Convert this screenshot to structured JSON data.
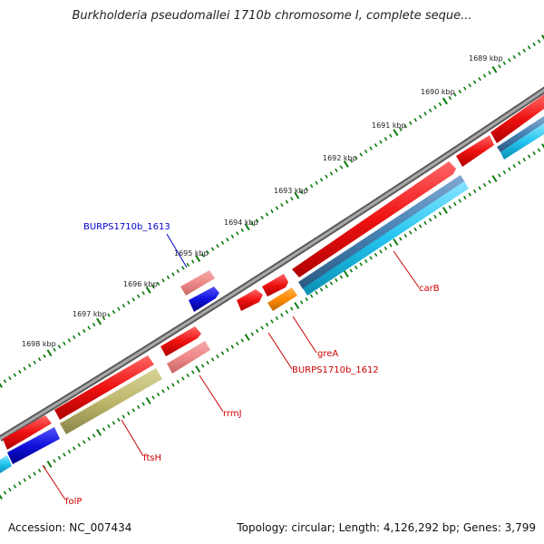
{
  "title": "Burkholderia pseudomallei 1710b chromosome I, complete seque...",
  "footer": {
    "accession": "Accession: NC_007434",
    "summary": "Topology: circular; Length: 4,126,292 bp; Genes: 3,799"
  },
  "kbp_labels": [
    "1689 kbp",
    "1690 kbp",
    "1691 kbp",
    "1692 kbp",
    "1693 kbp",
    "1694 kbp",
    "1695 kbp",
    "1696 kbp",
    "1697 kbp",
    "1698 kbp"
  ],
  "gene_labels": {
    "top": "BURPS1710b_1613",
    "carB": "carB",
    "greA": "greA",
    "burps1612": "BURPS1710b_1612",
    "rrmJ": "rrmJ",
    "ftsH": "ftsH",
    "folP": "folP"
  },
  "colors": {
    "gene_red": "#ee1111",
    "gene_pink": "#ee8888",
    "gene_blue": "#0a0ad6",
    "gene_orange": "#ff8a00",
    "gene_olive": "#bdb76b",
    "gene_cyan": "#22c4ee",
    "gene_steel": "#4682b4",
    "backbone": "#8a8a8a",
    "ticks": "#0b7a0b",
    "label_red": "#cc0000",
    "label_blue": "#0000cc"
  }
}
